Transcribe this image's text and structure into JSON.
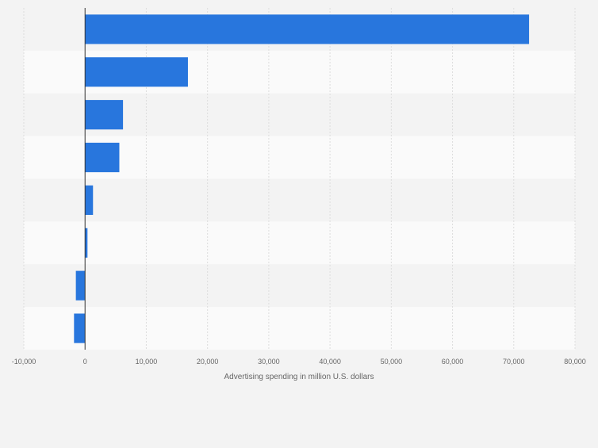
{
  "chart_data": {
    "type": "bar",
    "orientation": "horizontal",
    "categories": [
      "",
      "",
      "",
      "",
      "",
      "",
      "",
      ""
    ],
    "values": [
      72500,
      16800,
      6200,
      5600,
      1300,
      400,
      -1500,
      -1800
    ],
    "xlabel": "Advertising spending in million U.S. dollars",
    "ylabel": "",
    "xlim": [
      -10000,
      80000
    ],
    "xticks": [
      -10000,
      0,
      10000,
      20000,
      30000,
      40000,
      50000,
      60000,
      70000,
      80000
    ],
    "xtick_labels": [
      "-10,000",
      "0",
      "10,000",
      "20,000",
      "30,000",
      "40,000",
      "50,000",
      "60,000",
      "70,000",
      "80,000"
    ],
    "grid": true,
    "legend": "none",
    "colors": {
      "bar": "#2876dd",
      "background": "#f3f3f3",
      "band_light": "#fafafa",
      "band_dark": "#f3f3f3",
      "grid": "#dddddd",
      "zero_line": "#333333",
      "tick_text": "#666666"
    }
  }
}
